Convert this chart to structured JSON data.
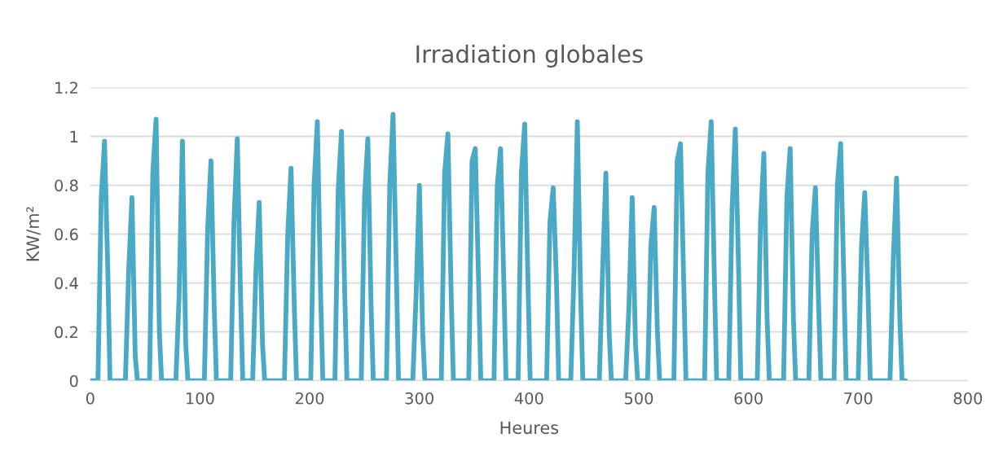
{
  "chart_data": {
    "type": "line",
    "title": "Irradiation globales",
    "xlabel": "Heures",
    "ylabel": "KW/m²",
    "xlim": [
      0,
      800
    ],
    "xticks": [
      0,
      100,
      200,
      300,
      400,
      500,
      600,
      700,
      800
    ],
    "ylim": [
      0,
      1.2
    ],
    "yticks": [
      0,
      0.2,
      0.4,
      0.6,
      0.8,
      1,
      1.2
    ],
    "grid": "y",
    "legend": false,
    "marker": "none",
    "line_style": "solid",
    "series": [
      {
        "color": "#4aaac6",
        "x": [
          0,
          7,
          10,
          13,
          16,
          18,
          32,
          35,
          38,
          41,
          43,
          54,
          57,
          60,
          63,
          65,
          78,
          81,
          84,
          87,
          89,
          104,
          107,
          110,
          113,
          115,
          128,
          131,
          134,
          137,
          139,
          148,
          151,
          154,
          157,
          159,
          177,
          180,
          183,
          186,
          188,
          201,
          204,
          207,
          210,
          212,
          223,
          226,
          229,
          232,
          234,
          247,
          250,
          253,
          256,
          258,
          270,
          273,
          276,
          279,
          281,
          294,
          297,
          300,
          303,
          305,
          320,
          323,
          326,
          329,
          331,
          345,
          348,
          351,
          354,
          356,
          368,
          371,
          374,
          377,
          379,
          390,
          393,
          396,
          399,
          401,
          416,
          419,
          422,
          425,
          427,
          438,
          441,
          444,
          447,
          449,
          464,
          467,
          470,
          473,
          475,
          488,
          491,
          494,
          497,
          499,
          508,
          511,
          514,
          517,
          519,
          532,
          535,
          538,
          541,
          543,
          560,
          563,
          566,
          569,
          571,
          582,
          585,
          588,
          591,
          593,
          608,
          611,
          614,
          617,
          619,
          632,
          635,
          638,
          641,
          643,
          655,
          658,
          661,
          664,
          666,
          678,
          681,
          684,
          687,
          689,
          700,
          703,
          706,
          709,
          711,
          729,
          732,
          735,
          738,
          740,
          743
        ],
        "values": [
          0,
          0,
          0.75,
          0.98,
          0.45,
          0,
          0,
          0.45,
          0.75,
          0.1,
          0,
          0,
          0.85,
          1.07,
          0.2,
          0,
          0,
          0.35,
          0.98,
          0.15,
          0,
          0,
          0.62,
          0.9,
          0.3,
          0,
          0,
          0.65,
          0.99,
          0.35,
          0,
          0,
          0.45,
          0.73,
          0.15,
          0,
          0,
          0.6,
          0.87,
          0.3,
          0,
          0,
          0.8,
          1.06,
          0.35,
          0,
          0,
          0.78,
          1.02,
          0.35,
          0,
          0,
          0.75,
          0.99,
          0.3,
          0,
          0,
          0.8,
          1.09,
          0.45,
          0,
          0,
          0.35,
          0.8,
          0.2,
          0,
          0,
          0.85,
          1.01,
          0.35,
          0,
          0,
          0.9,
          0.95,
          0.4,
          0,
          0,
          0.8,
          0.95,
          0.4,
          0,
          0,
          0.85,
          1.05,
          0.4,
          0,
          0,
          0.65,
          0.79,
          0.4,
          0,
          0,
          0.45,
          1.06,
          0.35,
          0,
          0,
          0.45,
          0.85,
          0.2,
          0,
          0,
          0.3,
          0.75,
          0.15,
          0,
          0,
          0.55,
          0.71,
          0.2,
          0,
          0,
          0.9,
          0.97,
          0.4,
          0,
          0,
          0.85,
          1.06,
          0.4,
          0,
          0,
          0.7,
          1.03,
          0.45,
          0,
          0,
          0.65,
          0.93,
          0.25,
          0,
          0,
          0.75,
          0.95,
          0.25,
          0,
          0,
          0.6,
          0.79,
          0.3,
          0,
          0,
          0.8,
          0.97,
          0.4,
          0,
          0,
          0.55,
          0.77,
          0.35,
          0,
          0,
          0.5,
          0.83,
          0.25,
          0,
          0
        ]
      }
    ]
  }
}
